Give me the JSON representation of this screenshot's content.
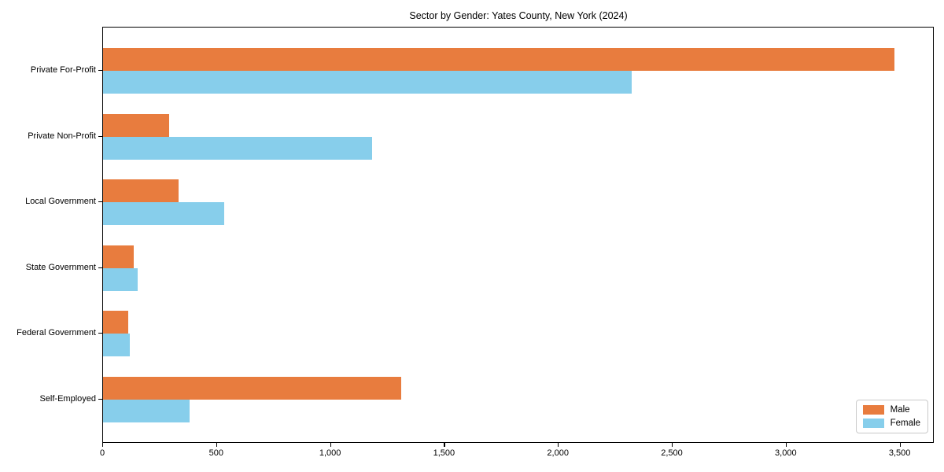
{
  "chart_data": {
    "type": "bar",
    "orientation": "horizontal",
    "title": "Sector by Gender: Yates County, New York (2024)",
    "xlabel": "",
    "ylabel": "",
    "grid": false,
    "legend_position": "lower right",
    "xlim": [
      0,
      3650
    ],
    "xticks": [
      0,
      500,
      1000,
      1500,
      2000,
      2500,
      3000,
      3500
    ],
    "xtick_labels": [
      "0",
      "500",
      "1,000",
      "1,500",
      "2,000",
      "2,500",
      "3,000",
      "3,500"
    ],
    "categories": [
      "Private For-Profit",
      "Private Non-Profit",
      "Local Government",
      "State Government",
      "Federal Government",
      "Self-Employed"
    ],
    "series": [
      {
        "name": "Male",
        "color": "#e87c3e",
        "values": [
          3475,
          290,
          330,
          133,
          110,
          1308
        ]
      },
      {
        "name": "Female",
        "color": "#87ceeb",
        "values": [
          2320,
          1180,
          530,
          152,
          118,
          378
        ]
      }
    ]
  }
}
